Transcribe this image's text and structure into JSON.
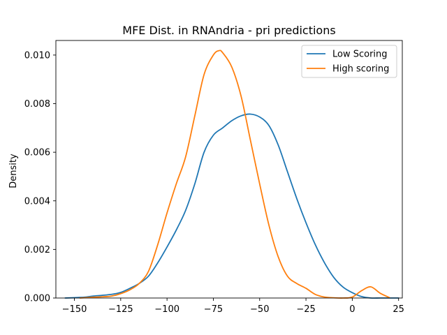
{
  "chart_data": {
    "type": "line",
    "title": "MFE Dist. in RNAndria - pri predictions",
    "xlabel": "",
    "ylabel": "Density",
    "xlim": [
      -160,
      27
    ],
    "ylim": [
      0,
      0.0106
    ],
    "xticks": [
      -150,
      -125,
      -100,
      -75,
      -50,
      -25,
      0,
      25
    ],
    "xtick_labels": [
      "−150",
      "−125",
      "−100",
      "−75",
      "−50",
      "−25",
      "0",
      "25"
    ],
    "yticks": [
      0,
      0.002,
      0.004,
      0.006,
      0.008,
      0.01
    ],
    "ytick_labels": [
      "0.000",
      "0.002",
      "0.004",
      "0.006",
      "0.008",
      "0.010"
    ],
    "grid": false,
    "legend_position": "top-right",
    "series": [
      {
        "name": "Low Scoring",
        "color": "#1f77b4",
        "points": [
          [
            -155,
            0.0
          ],
          [
            -145,
            3e-05
          ],
          [
            -140,
            8e-05
          ],
          [
            -135,
            0.00011
          ],
          [
            -130,
            0.00015
          ],
          [
            -125,
            0.00023
          ],
          [
            -120,
            0.0004
          ],
          [
            -115,
            0.0006
          ],
          [
            -110,
            0.0009
          ],
          [
            -105,
            0.00145
          ],
          [
            -100,
            0.0021
          ],
          [
            -95,
            0.0028
          ],
          [
            -90,
            0.0036
          ],
          [
            -85,
            0.0047
          ],
          [
            -80,
            0.006
          ],
          [
            -75,
            0.0067
          ],
          [
            -70,
            0.007
          ],
          [
            -65,
            0.0073
          ],
          [
            -60,
            0.0075
          ],
          [
            -55,
            0.00757
          ],
          [
            -50,
            0.00745
          ],
          [
            -45,
            0.0071
          ],
          [
            -40,
            0.0063
          ],
          [
            -35,
            0.0052
          ],
          [
            -30,
            0.0041
          ],
          [
            -25,
            0.0031
          ],
          [
            -20,
            0.0022
          ],
          [
            -15,
            0.00145
          ],
          [
            -10,
            0.00085
          ],
          [
            -5,
            0.00045
          ],
          [
            0,
            0.00022
          ],
          [
            5,
            6e-05
          ],
          [
            10,
            0.0
          ],
          [
            15,
            0.0
          ],
          [
            20,
            0.0
          ],
          [
            25,
            0.0
          ]
        ]
      },
      {
        "name": "High scoring",
        "color": "#ff7f0e",
        "points": [
          [
            -147,
            0.0
          ],
          [
            -140,
            3e-05
          ],
          [
            -135,
            5e-05
          ],
          [
            -130,
            8e-05
          ],
          [
            -125,
            0.00018
          ],
          [
            -120,
            0.00034
          ],
          [
            -115,
            0.0006
          ],
          [
            -110,
            0.0011
          ],
          [
            -105,
            0.0022
          ],
          [
            -100,
            0.0035
          ],
          [
            -95,
            0.0047
          ],
          [
            -90,
            0.0058
          ],
          [
            -85,
            0.0075
          ],
          [
            -80,
            0.0092
          ],
          [
            -75,
            0.01
          ],
          [
            -72,
            0.01018
          ],
          [
            -70,
            0.0101
          ],
          [
            -65,
            0.0095
          ],
          [
            -60,
            0.0083
          ],
          [
            -55,
            0.0065
          ],
          [
            -50,
            0.0047
          ],
          [
            -45,
            0.003
          ],
          [
            -40,
            0.0017
          ],
          [
            -35,
            0.0009
          ],
          [
            -30,
            0.0006
          ],
          [
            -25,
            0.0004
          ],
          [
            -20,
            0.00015
          ],
          [
            -15,
            4e-05
          ],
          [
            -10,
            1e-05
          ],
          [
            -5,
            0.0
          ],
          [
            0,
            4e-05
          ],
          [
            5,
            0.0003
          ],
          [
            10,
            0.00046
          ],
          [
            15,
            0.0002
          ],
          [
            20,
            2e-05
          ]
        ]
      }
    ]
  }
}
